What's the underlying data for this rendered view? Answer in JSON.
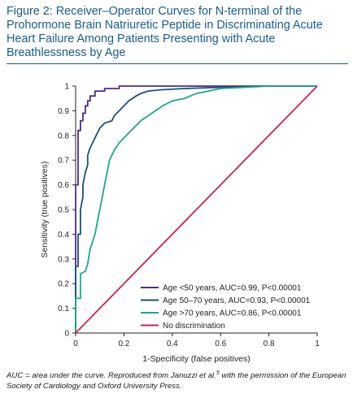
{
  "figure": {
    "title": "Figure 2: Receiver–Operator Curves for N-terminal of the Prohormone Brain Natriuretic Peptide in Discriminating Acute Heart Failure Among Patients Presenting with Acute Breathlessness by Age",
    "caption_before": "AUC = area under the curve. Reproduced from Januzzi et al.",
    "caption_ref": "5",
    "caption_after": " with the permission of the European Society of Cardiology and Oxford University Press."
  },
  "chart_data": {
    "type": "line",
    "xlabel": "1-Specificity (false positives)",
    "ylabel": "Sensitivity (true positives)",
    "xlim": [
      0,
      1
    ],
    "ylim": [
      0,
      1
    ],
    "xticks": [
      "0",
      "0.2",
      "0.4",
      "0.6",
      "0.8",
      "1"
    ],
    "yticks": [
      "0",
      "0.1",
      "0.2",
      "0.3",
      "0.4",
      "0.5",
      "0.6",
      "0.7",
      "0.8",
      "0.9",
      "1"
    ],
    "legend_position": "bottom-right",
    "series": [
      {
        "name": "Age <50 years, AUC=0.99, P<0.00001",
        "color": "#4b2d84",
        "x": [
          0,
          0,
          0.01,
          0.01,
          0.02,
          0.02,
          0.03,
          0.03,
          0.04,
          0.04,
          0.05,
          0.05,
          0.06,
          0.06,
          0.08,
          0.08,
          0.12,
          0.12,
          0.18,
          0.18,
          0.5,
          1
        ],
        "y": [
          0,
          0.6,
          0.6,
          0.82,
          0.82,
          0.86,
          0.86,
          0.89,
          0.89,
          0.92,
          0.92,
          0.94,
          0.94,
          0.96,
          0.96,
          0.98,
          0.98,
          0.99,
          0.99,
          1,
          1,
          1
        ]
      },
      {
        "name": "Age 50–70 years, AUC=0.93, P<0.00001",
        "color": "#1c4f80",
        "x": [
          0,
          0,
          0.01,
          0.01,
          0.02,
          0.02,
          0.03,
          0.03,
          0.04,
          0.05,
          0.05,
          0.06,
          0.07,
          0.08,
          0.09,
          0.1,
          0.12,
          0.15,
          0.16,
          0.18,
          0.2,
          0.22,
          0.25,
          0.27,
          0.3,
          0.35,
          0.45,
          0.6,
          0.75,
          0.9,
          1
        ],
        "y": [
          0,
          0.27,
          0.27,
          0.4,
          0.4,
          0.5,
          0.55,
          0.6,
          0.65,
          0.68,
          0.72,
          0.75,
          0.77,
          0.79,
          0.81,
          0.83,
          0.85,
          0.86,
          0.88,
          0.9,
          0.92,
          0.94,
          0.96,
          0.97,
          0.98,
          0.985,
          0.99,
          0.995,
          1,
          1,
          1
        ]
      },
      {
        "name": "Age >70 years, AUC=0.86, P<0.00001",
        "color": "#23a48c",
        "x": [
          0,
          0,
          0.02,
          0.02,
          0.04,
          0.05,
          0.06,
          0.08,
          0.09,
          0.1,
          0.11,
          0.12,
          0.13,
          0.14,
          0.15,
          0.16,
          0.18,
          0.2,
          0.22,
          0.25,
          0.27,
          0.3,
          0.33,
          0.36,
          0.4,
          0.45,
          0.5,
          0.55,
          0.6,
          0.7,
          0.8,
          0.9,
          1
        ],
        "y": [
          0,
          0.14,
          0.14,
          0.24,
          0.25,
          0.28,
          0.34,
          0.4,
          0.45,
          0.5,
          0.55,
          0.6,
          0.65,
          0.7,
          0.72,
          0.74,
          0.77,
          0.79,
          0.81,
          0.84,
          0.86,
          0.88,
          0.9,
          0.92,
          0.94,
          0.95,
          0.97,
          0.98,
          0.99,
          0.995,
          1,
          1,
          1
        ]
      },
      {
        "name": "No discrimination",
        "color": "#c2284f",
        "x": [
          0,
          1
        ],
        "y": [
          0,
          1
        ]
      }
    ]
  }
}
